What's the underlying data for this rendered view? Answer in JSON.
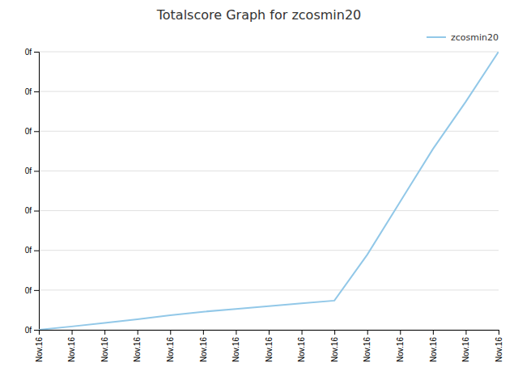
{
  "chart_data": {
    "type": "line",
    "title": "Totalscore Graph for zcosmin20",
    "x": [
      0,
      1,
      2,
      3,
      4,
      5,
      6,
      7,
      8,
      9,
      10,
      11,
      12,
      13,
      14
    ],
    "series": [
      {
        "name": "zcosmin20",
        "color": "#92c8e8",
        "values": [
          0,
          0.012,
          0.025,
          0.038,
          0.052,
          0.065,
          0.075,
          0.085,
          0.095,
          0.105,
          0.27,
          0.46,
          0.65,
          0.82,
          1.0
        ]
      }
    ],
    "xlim": [
      0,
      14
    ],
    "xticks": [
      {
        "value": 0,
        "label": "Nov.16"
      },
      {
        "value": 1,
        "label": "Nov.16"
      },
      {
        "value": 2,
        "label": "Nov.16"
      },
      {
        "value": 3,
        "label": "Nov.16"
      },
      {
        "value": 4,
        "label": "Nov.16"
      },
      {
        "value": 5,
        "label": "Nov.16"
      },
      {
        "value": 6,
        "label": "Nov.16"
      },
      {
        "value": 7,
        "label": "Nov.16"
      },
      {
        "value": 8,
        "label": "Nov.16"
      },
      {
        "value": 9,
        "label": "Nov.16"
      },
      {
        "value": 10,
        "label": "Nov.16"
      },
      {
        "value": 11,
        "label": "Nov.16"
      },
      {
        "value": 12,
        "label": "Nov.16"
      },
      {
        "value": 13,
        "label": "Nov.16"
      },
      {
        "value": 14,
        "label": "Nov.16"
      }
    ],
    "ylim": [
      0,
      1.0
    ],
    "yticks": [
      {
        "value": 0,
        "label": "0f"
      },
      {
        "value": 0.14285714285714285,
        "label": "0f"
      },
      {
        "value": 0.2857142857142857,
        "label": "0f"
      },
      {
        "value": 0.42857142857142855,
        "label": "0f"
      },
      {
        "value": 0.5714285714285714,
        "label": "0f"
      },
      {
        "value": 0.7142857142857143,
        "label": "0f"
      },
      {
        "value": 0.8571428571428571,
        "label": "0f"
      },
      {
        "value": 1.0,
        "label": "0f"
      }
    ],
    "grid": true,
    "legend": "top-right"
  }
}
